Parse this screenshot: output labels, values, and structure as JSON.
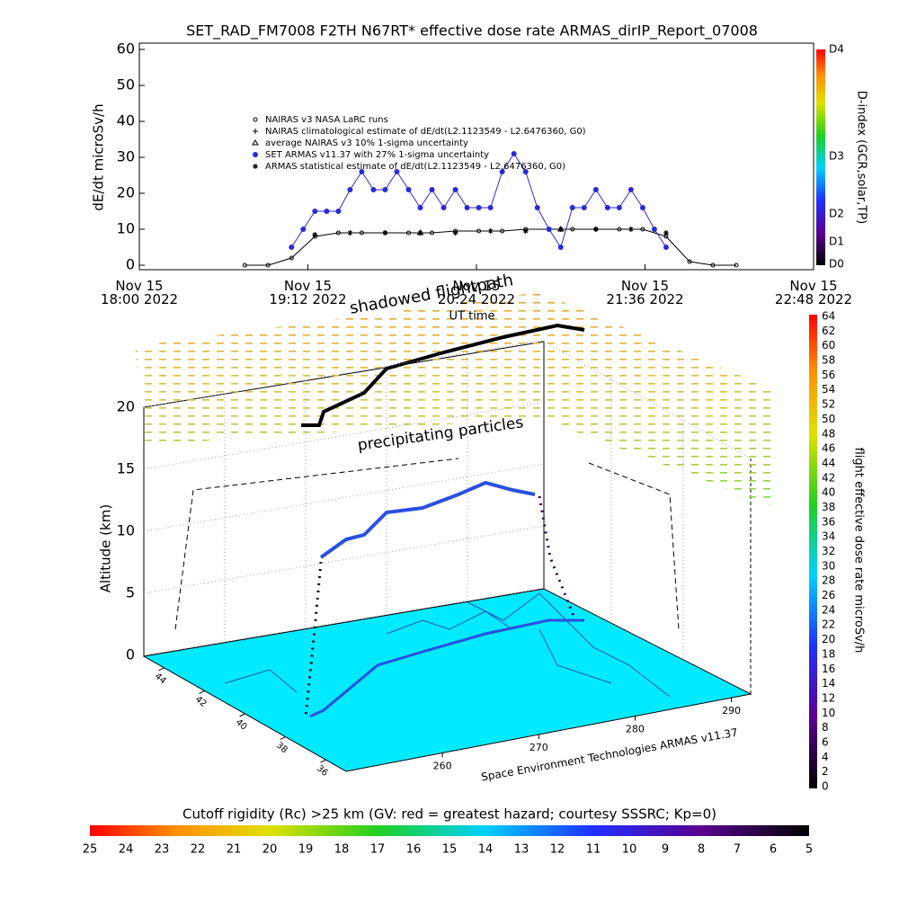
{
  "title": "SET_RAD_FM7008  F2TH N67RT* effective dose rate ARMAS_dirIP_Report_07008",
  "chart_data": [
    {
      "type": "line",
      "x_label": "UT time",
      "y_label": "dE/dt microSv/h",
      "xlim": [
        "2022-11-15T18:00",
        "2022-11-15T22:48"
      ],
      "xticks": [
        {
          "value": "2022-11-15T18:00",
          "label": "Nov 15\n18:00 2022"
        },
        {
          "value": "2022-11-15T19:12",
          "label": "Nov 15\n19:12 2022"
        },
        {
          "value": "2022-11-15T20:24",
          "label": "Nov 15\n20:24 2022"
        },
        {
          "value": "2022-11-15T21:36",
          "label": "Nov 15\n21:36 2022"
        },
        {
          "value": "2022-11-15T22:48",
          "label": "Nov 15\n22:48 2022"
        }
      ],
      "ylim": [
        0,
        60
      ],
      "yticks": [
        0,
        10,
        20,
        30,
        40,
        50,
        60
      ],
      "series": [
        {
          "name": "NAIRAS v3 NASA LaRC runs",
          "color": "#000000",
          "marker": "open-circle",
          "line": true,
          "x": [
            "2022-11-15T18:45",
            "2022-11-15T18:55",
            "2022-11-15T19:05",
            "2022-11-15T19:15",
            "2022-11-15T19:25",
            "2022-11-15T19:35",
            "2022-11-15T19:45",
            "2022-11-15T19:55",
            "2022-11-15T20:05",
            "2022-11-15T20:15",
            "2022-11-15T20:25",
            "2022-11-15T20:35",
            "2022-11-15T20:45",
            "2022-11-15T20:55",
            "2022-11-15T21:05",
            "2022-11-15T21:15",
            "2022-11-15T21:25",
            "2022-11-15T21:35",
            "2022-11-15T21:45",
            "2022-11-15T21:55",
            "2022-11-15T22:05",
            "2022-11-15T22:15"
          ],
          "values": [
            0,
            0,
            2,
            8,
            9,
            9,
            9,
            9,
            9,
            9.5,
            9.5,
            9.5,
            10,
            10,
            10,
            10,
            10,
            10,
            8,
            1,
            0,
            0
          ]
        },
        {
          "name": "NAIRAS climatological estimate of dE/dt(L2.1123549 - L2.6476360, G0)",
          "color": "#000000",
          "marker": "plus",
          "line": false,
          "x": [
            "2022-11-15T19:30",
            "2022-11-15T20:30",
            "2022-11-15T21:30"
          ],
          "values": [
            9,
            9.5,
            10
          ]
        },
        {
          "name": "average NAIRAS v3 10% 1-sigma uncertainty",
          "color": "#000000",
          "marker": "triangle",
          "line": false,
          "x": [
            "2022-11-15T20:00",
            "2022-11-15T21:00"
          ],
          "values": [
            9,
            10
          ]
        },
        {
          "name": "SET ARMAS v11.37 with 27% 1-sigma uncertainty",
          "color": "#2a2ad8",
          "marker": "dot",
          "line": true,
          "x": [
            "2022-11-15T19:05",
            "2022-11-15T19:10",
            "2022-11-15T19:15",
            "2022-11-15T19:20",
            "2022-11-15T19:25",
            "2022-11-15T19:30",
            "2022-11-15T19:35",
            "2022-11-15T19:40",
            "2022-11-15T19:45",
            "2022-11-15T19:50",
            "2022-11-15T19:55",
            "2022-11-15T20:00",
            "2022-11-15T20:05",
            "2022-11-15T20:10",
            "2022-11-15T20:15",
            "2022-11-15T20:20",
            "2022-11-15T20:25",
            "2022-11-15T20:30",
            "2022-11-15T20:35",
            "2022-11-15T20:40",
            "2022-11-15T20:45",
            "2022-11-15T20:50",
            "2022-11-15T20:55",
            "2022-11-15T21:00",
            "2022-11-15T21:05",
            "2022-11-15T21:10",
            "2022-11-15T21:15",
            "2022-11-15T21:20",
            "2022-11-15T21:25",
            "2022-11-15T21:30",
            "2022-11-15T21:35",
            "2022-11-15T21:40",
            "2022-11-15T21:45"
          ],
          "values": [
            5,
            10,
            15,
            15,
            15,
            21,
            26,
            21,
            21,
            26,
            21,
            16,
            21,
            16,
            21,
            16,
            16,
            16,
            26,
            31,
            26,
            16,
            10,
            5,
            16,
            16,
            21,
            16,
            16,
            21,
            16,
            10,
            5
          ]
        },
        {
          "name": "ARMAS statistical estimate of dE/dt(L2.1123549 - L2.6476360, G0)",
          "color": "#000000",
          "marker": "star",
          "line": false,
          "x": [
            "2022-11-15T19:15",
            "2022-11-15T19:30",
            "2022-11-15T19:45",
            "2022-11-15T20:00",
            "2022-11-15T20:15",
            "2022-11-15T20:30",
            "2022-11-15T20:45",
            "2022-11-15T21:00",
            "2022-11-15T21:15",
            "2022-11-15T21:30",
            "2022-11-15T21:45"
          ],
          "values": [
            8.5,
            9,
            9,
            9,
            9,
            9.5,
            9.5,
            10,
            10,
            10,
            9
          ]
        }
      ],
      "colorbar": {
        "label": "D-index (GCR,solar,TP)",
        "ticks": [
          "D0",
          "D1",
          "D2",
          "D3",
          "D4"
        ]
      }
    },
    {
      "type": "surface3d",
      "annotations": [
        "shadowed flightpath",
        "precipitating particles"
      ],
      "credit": "Space Environment Technologies ARMAS v11.37",
      "z_label": "Altitude (km)",
      "zlim": [
        0,
        20
      ],
      "zticks": [
        0,
        5,
        10,
        15,
        20
      ],
      "ylim": [
        45,
        35
      ],
      "yticks": [
        44,
        42,
        40,
        38,
        36
      ],
      "xlim": [
        250,
        292
      ],
      "xticks": [
        260,
        270,
        280,
        290
      ],
      "colorbar": {
        "label": "flight effective dose rate microSv/h",
        "lim": [
          0,
          64
        ],
        "ticks": [
          0,
          2,
          4,
          6,
          8,
          10,
          12,
          14,
          16,
          18,
          20,
          22,
          24,
          26,
          28,
          30,
          32,
          34,
          36,
          38,
          40,
          42,
          44,
          46,
          48,
          50,
          52,
          54,
          56,
          58,
          60,
          62,
          64
        ]
      }
    },
    {
      "type": "colorbar",
      "label": "Cutoff rigidity (Rc) >25 km (GV: red = greatest hazard; courtesy SSSRC; Kp=0)",
      "lim": [
        25,
        5
      ],
      "ticks": [
        25,
        24,
        23,
        22,
        21,
        20,
        19,
        18,
        17,
        16,
        15,
        14,
        13,
        12,
        11,
        10,
        9,
        8,
        7,
        6,
        5
      ]
    }
  ]
}
